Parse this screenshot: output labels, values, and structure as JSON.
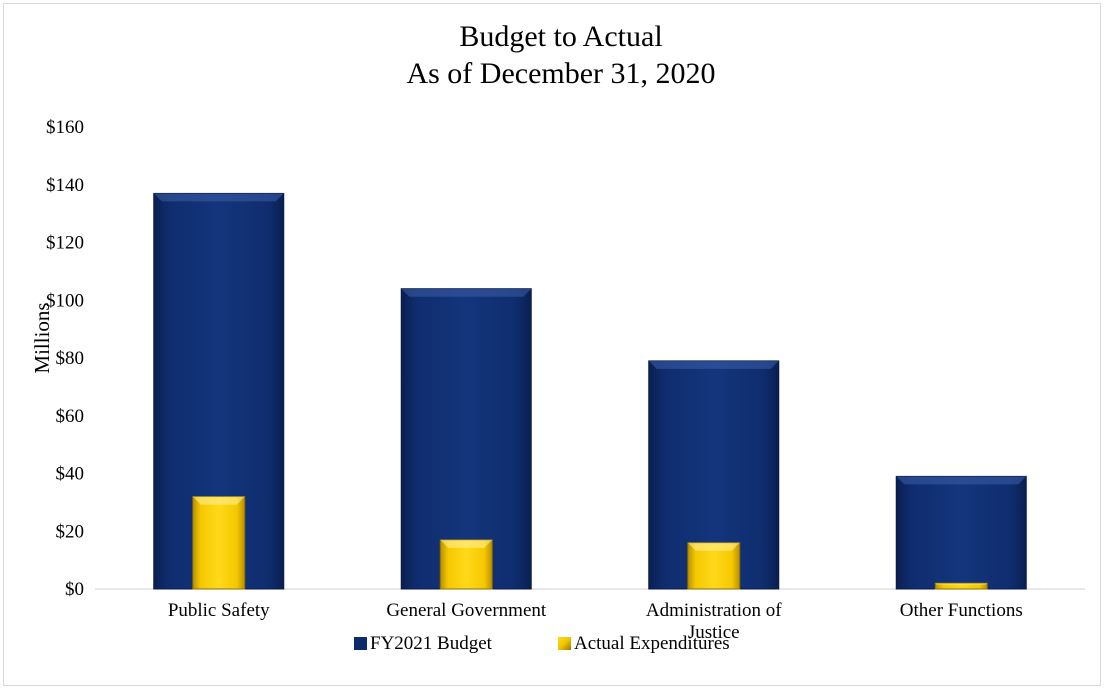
{
  "chart_data": {
    "type": "bar",
    "title_lines": [
      "Budget to Actual",
      "As of December 31, 2020"
    ],
    "ylabel": "Millions",
    "xlabel": "",
    "ylim": [
      0,
      160
    ],
    "y_ticks": [
      0,
      20,
      40,
      60,
      80,
      100,
      120,
      140,
      160
    ],
    "y_tick_labels": [
      "$0",
      "$20",
      "$40",
      "$60",
      "$80",
      "$100",
      "$120",
      "$140",
      "$160"
    ],
    "categories": [
      [
        "Public Safety"
      ],
      [
        "General Government"
      ],
      [
        "Administration of",
        "Justice"
      ],
      [
        "Other Functions"
      ]
    ],
    "series": [
      {
        "name": "FY2021 Budget",
        "color": "#0d2a6b",
        "values": [
          137,
          104,
          79,
          39
        ]
      },
      {
        "name": "Actual Expenditures",
        "color": "#f2c500",
        "values": [
          32,
          17,
          16,
          2
        ]
      }
    ],
    "grid": false,
    "legend_position": "bottom"
  }
}
